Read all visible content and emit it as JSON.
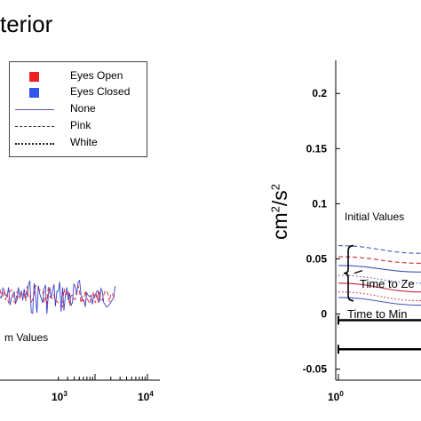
{
  "figure": {
    "title_fragment": "terior"
  },
  "legend": {
    "entries": [
      {
        "label": "Eyes Open",
        "kind": "swatch",
        "color": "#ee2222"
      },
      {
        "label": "Eyes Closed",
        "kind": "swatch",
        "color": "#3355ee"
      },
      {
        "label": "None",
        "kind": "solid"
      },
      {
        "label": "Pink",
        "kind": "dashed"
      },
      {
        "label": "White",
        "kind": "dotted"
      }
    ]
  },
  "chart_data": [
    {
      "type": "line",
      "x_scale": "log",
      "xlim": [
        1,
        10000
      ],
      "x_tick_labels": [
        {
          "base": "10",
          "exp": "3"
        },
        {
          "base": "10",
          "exp": "4"
        }
      ],
      "x_ticks": [
        1000,
        10000
      ],
      "annotations": [
        "m Values"
      ],
      "series": [
        {
          "color": "#3344cc",
          "style": "solid",
          "x_range": [
            1,
            2500
          ]
        },
        {
          "color": "#dd2233",
          "style": "dashed",
          "x_range": [
            1,
            2500
          ]
        }
      ]
    },
    {
      "type": "line",
      "x_scale": "log",
      "xlim": [
        1,
        10
      ],
      "ylim": [
        -0.06,
        0.23
      ],
      "y_ticks": [
        -0.05,
        0,
        0.05,
        0.1,
        0.15,
        0.2
      ],
      "y_tick_labels": [
        "-0.05",
        "0",
        "0.05",
        "0.1",
        "0.15",
        "0.2"
      ],
      "x_tick_labels": [
        {
          "base": "10",
          "exp": "0"
        }
      ],
      "ylabel": {
        "base": "cm",
        "sup1": "2",
        "mid": "/s",
        "sup2": "2"
      },
      "annotations": [
        "Initial Values",
        "Time to Ze",
        "Time to Min"
      ],
      "series": [
        {
          "color": "#4455bb",
          "style": "dashed",
          "values": [
            0.062,
            0.055
          ]
        },
        {
          "color": "#cc2233",
          "style": "dashed",
          "values": [
            0.052,
            0.046
          ]
        },
        {
          "color": "#4455bb",
          "style": "solid",
          "values": [
            0.044,
            0.038
          ]
        },
        {
          "color": "#4455bb",
          "style": "dotted",
          "values": [
            0.035,
            0.028
          ]
        },
        {
          "color": "#cc2233",
          "style": "solid",
          "values": [
            0.028,
            0.02
          ]
        },
        {
          "color": "#cc2233",
          "style": "dotted",
          "values": [
            0.02,
            0.012
          ]
        },
        {
          "color": "#4455bb",
          "style": "solid",
          "values": [
            0.015,
            0.008
          ]
        }
      ],
      "reference_lines": [
        {
          "label": "Time to Ze",
          "y": 0
        },
        {
          "label": "Time to Min",
          "y": -0.032
        }
      ]
    }
  ]
}
